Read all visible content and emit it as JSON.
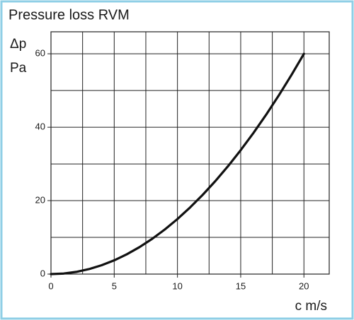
{
  "chart_data": {
    "type": "line",
    "title": "Pressure loss RVM",
    "y_label_symbol": "Δp",
    "y_label_unit": "Pa",
    "x_label": "c m/s",
    "x": [
      0,
      1,
      2,
      3,
      4,
      5,
      6,
      7,
      8,
      9,
      10,
      11,
      12,
      13,
      14,
      15,
      16,
      17,
      18,
      19,
      20
    ],
    "series": [
      {
        "color": "#111111",
        "values": [
          0,
          0.15,
          0.6,
          1.35,
          2.4,
          3.75,
          5.4,
          7.35,
          9.6,
          12.15,
          15,
          18.15,
          21.6,
          25.35,
          29.4,
          33.75,
          38.4,
          43.35,
          48.6,
          54.15,
          60
        ]
      }
    ],
    "xlim": [
      0,
      22
    ],
    "ylim": [
      0,
      66
    ],
    "xticks": [
      0,
      5,
      10,
      15,
      20
    ],
    "xminor": [
      2.5,
      7.5,
      12.5,
      17.5
    ],
    "yticks": [
      0,
      20,
      40,
      60
    ],
    "yminor": [
      10,
      30,
      50
    ],
    "grid": true
  }
}
